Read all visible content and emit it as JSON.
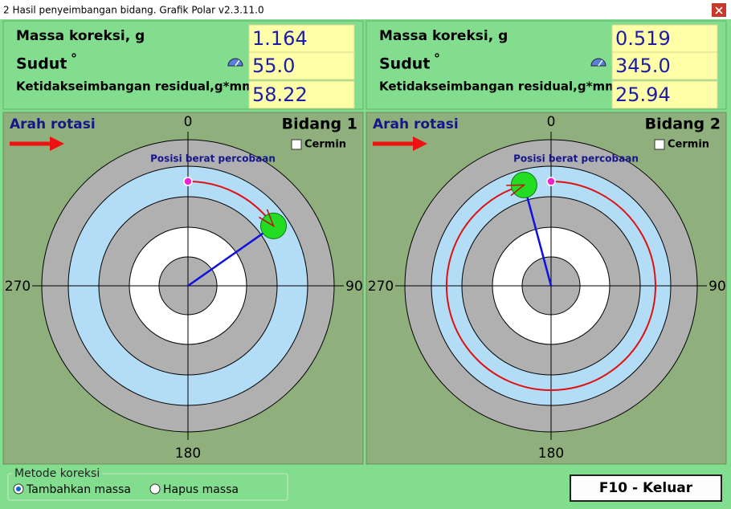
{
  "window": {
    "title": "2 Hasil penyeimbangan bidang. Grafik Polar v2.3.11.0"
  },
  "panels": [
    {
      "fields": [
        {
          "label": "Massa koreksi, g",
          "value": "1.164"
        },
        {
          "label": "Sudut",
          "unit": "°",
          "value": "55.0"
        },
        {
          "label": "Ketidakseimbangan residual,g*mm",
          "value": "58.22"
        }
      ],
      "plot": {
        "rotation_label": "Arah rotasi",
        "plane": "Bidang 1",
        "mirror": "Cermin",
        "trial_label": "Posisi berat percobaan",
        "axis_labels": {
          "top": "0",
          "right": "90",
          "bottom": "180",
          "left": "270"
        }
      }
    },
    {
      "fields": [
        {
          "label": "Massa koreksi, g",
          "value": "0.519"
        },
        {
          "label": "Sudut",
          "unit": "°",
          "value": "345.0"
        },
        {
          "label": "Ketidakseimbangan residual,g*mm",
          "value": "25.94"
        }
      ],
      "plot": {
        "rotation_label": "Arah rotasi",
        "plane": "Bidang 2",
        "mirror": "Cermin",
        "trial_label": "Posisi berat percobaan",
        "axis_labels": {
          "top": "0",
          "right": "90",
          "bottom": "180",
          "left": "270"
        }
      }
    }
  ],
  "correction": {
    "legend": "Metode koreksi",
    "options": [
      "Tambahkan massa",
      "Hapus massa"
    ],
    "selected": 0
  },
  "exit_button": "F10 - Keluar"
}
